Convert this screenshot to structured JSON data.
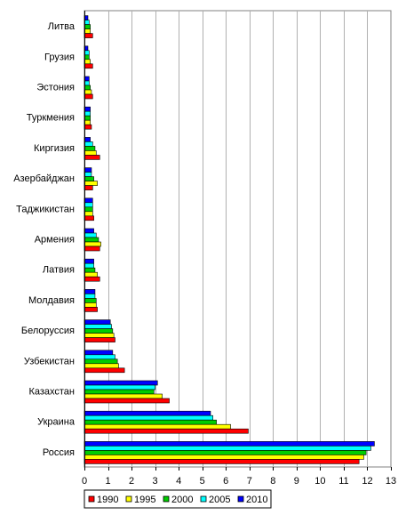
{
  "chart_data": {
    "type": "bar",
    "orientation": "horizontal",
    "title": "",
    "xlabel": "",
    "ylabel": "",
    "xlim": [
      0,
      13
    ],
    "x_ticks": [
      "0",
      "1",
      "2",
      "3",
      "4",
      "5",
      "6",
      "7",
      "8",
      "9",
      "10",
      "11",
      "12",
      "13"
    ],
    "grid": "vertical",
    "legend_position": "bottom",
    "categories": [
      "Литва",
      "Грузия",
      "Эстония",
      "Туркмения",
      "Киргизия",
      "Азербайджан",
      "Таджикистан",
      "Армения",
      "Латвия",
      "Молдавия",
      "Белоруссия",
      "Узбекистан",
      "Казахстан",
      "Украина",
      "Россия"
    ],
    "series": [
      {
        "name": "1990",
        "color": "#ff0000",
        "values": [
          0.35,
          0.35,
          0.35,
          0.3,
          0.65,
          0.35,
          0.4,
          0.65,
          0.65,
          0.55,
          1.3,
          1.7,
          3.6,
          6.95,
          11.65
        ]
      },
      {
        "name": "1995",
        "color": "#ffff00",
        "values": [
          0.25,
          0.25,
          0.3,
          0.25,
          0.5,
          0.55,
          0.35,
          0.7,
          0.55,
          0.5,
          1.25,
          1.45,
          3.3,
          6.2,
          11.85
        ]
      },
      {
        "name": "2000",
        "color": "#00cc00",
        "values": [
          0.25,
          0.2,
          0.25,
          0.25,
          0.45,
          0.4,
          0.35,
          0.6,
          0.45,
          0.5,
          1.2,
          1.4,
          2.95,
          5.6,
          11.95
        ]
      },
      {
        "name": "2005",
        "color": "#00ffff",
        "values": [
          0.2,
          0.2,
          0.2,
          0.25,
          0.35,
          0.3,
          0.35,
          0.5,
          0.4,
          0.45,
          1.15,
          1.3,
          3.0,
          5.45,
          12.15
        ]
      },
      {
        "name": "2010",
        "color": "#0000ff",
        "values": [
          0.15,
          0.15,
          0.2,
          0.25,
          0.25,
          0.3,
          0.35,
          0.4,
          0.4,
          0.45,
          1.1,
          1.2,
          3.1,
          5.35,
          12.3
        ]
      }
    ]
  }
}
